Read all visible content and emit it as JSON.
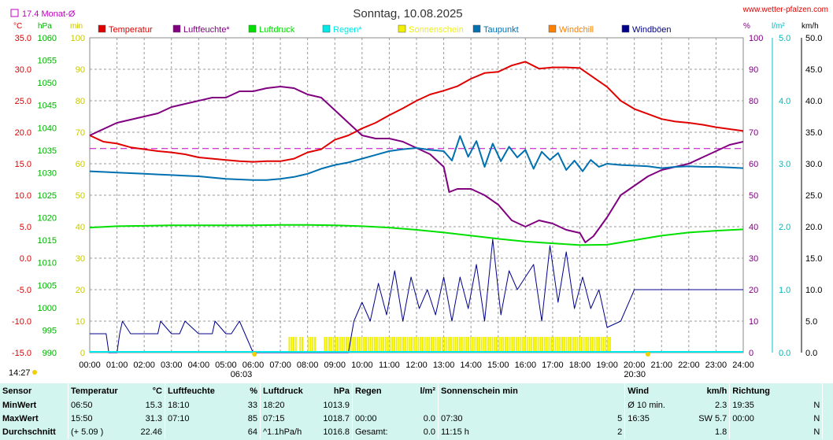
{
  "header": {
    "title": "Sonntag, 10.08.2025",
    "site": "www.wetter-pfalzen.com",
    "monthly_avg": "17.4 Monat-Ø"
  },
  "axis_units": {
    "temp": "°C",
    "hpa": "hPa",
    "min": "min",
    "pct": "%",
    "lm2": "l/m²",
    "kmh": "km/h"
  },
  "legend": [
    {
      "label": "Temperatur",
      "color": "#e00000"
    },
    {
      "label": "Luftfeuchte*",
      "color": "#800080"
    },
    {
      "label": "Luftdruck",
      "color": "#00e000"
    },
    {
      "label": "Regen*",
      "color": "#00e8e8"
    },
    {
      "label": "Sonnenschein",
      "color": "#f0f000"
    },
    {
      "label": "Taupunkt",
      "color": "#0070b0"
    },
    {
      "label": "Windchill",
      "color": "#ff8000"
    },
    {
      "label": "Windböen",
      "color": "#00008b"
    }
  ],
  "annotations": {
    "sunrise": "06:03",
    "sunset": "20:30",
    "now": "14:27"
  },
  "chart_data": {
    "type": "line",
    "x_ticks": [
      "00:00",
      "01:00",
      "02:00",
      "03:00",
      "04:00",
      "05:00",
      "06:00",
      "07:00",
      "08:00",
      "09:00",
      "10:00",
      "11:00",
      "12:00",
      "13:00",
      "14:00",
      "15:00",
      "16:00",
      "17:00",
      "18:00",
      "19:00",
      "20:00",
      "21:00",
      "22:00",
      "23:00",
      "24:00"
    ],
    "xlim": [
      0,
      24
    ],
    "temp_axis": {
      "ylim": [
        -15,
        35
      ],
      "ticks": [
        "35.0",
        "30.0",
        "25.0",
        "20.0",
        "15.0",
        "10.0",
        "5.0",
        "0.0",
        "-5.0",
        "-10.0",
        "-15.0"
      ]
    },
    "hpa_axis": {
      "ylim": [
        990,
        1060
      ],
      "ticks": [
        "1060",
        "1055",
        "1050",
        "1045",
        "1040",
        "1035",
        "1030",
        "1025",
        "1020",
        "1015",
        "1010",
        "1005",
        "1000",
        "995",
        "990"
      ]
    },
    "min_axis": {
      "ylim": [
        0,
        100
      ],
      "ticks": [
        "100",
        "90",
        "80",
        "70",
        "60",
        "50",
        "40",
        "30",
        "20",
        "10",
        "0"
      ]
    },
    "pct_axis": {
      "ylim": [
        0,
        100
      ],
      "ticks": [
        "100",
        "90",
        "80",
        "70",
        "60",
        "50",
        "40",
        "30",
        "20",
        "10",
        "0"
      ]
    },
    "lm2_axis": {
      "ylim": [
        0,
        5
      ],
      "ticks": [
        "5.0",
        "4.0",
        "3.0",
        "2.0",
        "1.0",
        "0.0"
      ]
    },
    "kmh_axis": {
      "ylim": [
        0,
        50
      ],
      "ticks": [
        "50.0",
        "45.0",
        "40.0",
        "35.0",
        "30.0",
        "25.0",
        "20.0",
        "15.0",
        "10.0",
        "5.0",
        "0.0"
      ]
    },
    "monthly_avg_temp": 17.4,
    "series": [
      {
        "name": "Temperatur",
        "axis": "temp",
        "color": "#e00000",
        "x": [
          0,
          0.5,
          1,
          1.5,
          2,
          2.5,
          3,
          3.5,
          4,
          4.5,
          5,
          5.5,
          6,
          6.5,
          7,
          7.5,
          8,
          8.5,
          9,
          9.5,
          10,
          10.5,
          11,
          11.5,
          12,
          12.5,
          13,
          13.5,
          14,
          14.5,
          15,
          15.5,
          16,
          16.5,
          17,
          17.5,
          18,
          18.5,
          19,
          19.5,
          20,
          20.5,
          21,
          21.5,
          22,
          22.5,
          23,
          23.5,
          24
        ],
        "values": [
          19.5,
          18.5,
          18.2,
          17.6,
          17.3,
          17.0,
          16.8,
          16.5,
          16.0,
          15.8,
          15.6,
          15.4,
          15.3,
          15.4,
          15.4,
          15.8,
          16.8,
          17.3,
          18.8,
          19.5,
          20.6,
          21.5,
          22.7,
          23.8,
          25.0,
          26.0,
          26.6,
          27.3,
          28.5,
          29.4,
          29.6,
          30.6,
          31.2,
          30.1,
          30.3,
          30.3,
          30.2,
          28.7,
          27.2,
          25.0,
          23.7,
          22.9,
          22.1,
          21.7,
          21.5,
          21.2,
          20.8,
          20.5,
          20.2
        ]
      },
      {
        "name": "Luftfeuchte*",
        "axis": "pct",
        "color": "#800080",
        "x": [
          0,
          0.5,
          1,
          1.5,
          2,
          2.5,
          3,
          3.5,
          4,
          4.5,
          5,
          5.5,
          6,
          6.5,
          7,
          7.5,
          8,
          8.5,
          9,
          9.5,
          10,
          10.5,
          11,
          11.5,
          12,
          12.5,
          13,
          13.2,
          13.5,
          14,
          14.5,
          15,
          15.5,
          16,
          16.5,
          17,
          17.5,
          18,
          18.2,
          18.5,
          19,
          19.5,
          20,
          20.5,
          21,
          21.5,
          22,
          22.5,
          23,
          23.5,
          24
        ],
        "values": [
          69,
          71,
          73,
          74,
          75,
          76,
          78,
          79,
          80,
          81,
          81,
          83,
          83,
          84,
          84.5,
          84,
          82,
          81,
          77,
          73,
          69,
          68,
          68,
          67,
          65,
          63,
          59,
          51,
          52,
          52,
          50,
          47,
          42,
          40,
          42,
          41,
          39,
          38,
          35,
          37,
          43,
          50,
          53,
          56,
          58,
          59,
          60,
          62,
          64,
          66,
          67
        ]
      },
      {
        "name": "Taupunkt",
        "axis": "temp",
        "color": "#0070b0",
        "x": [
          0,
          0.5,
          1,
          1.5,
          2,
          2.5,
          3,
          3.5,
          4,
          4.5,
          5,
          5.5,
          6,
          6.5,
          7,
          7.5,
          8,
          8.5,
          9,
          9.5,
          10,
          10.5,
          11,
          11.5,
          12,
          12.5,
          13,
          13.3,
          13.6,
          13.9,
          14.2,
          14.5,
          14.8,
          15.1,
          15.4,
          15.7,
          16,
          16.3,
          16.6,
          16.9,
          17.2,
          17.5,
          17.8,
          18.1,
          18.4,
          18.7,
          19,
          19.5,
          20,
          20.5,
          21,
          21.5,
          22,
          22.5,
          23,
          23.5,
          24
        ],
        "values": [
          13.8,
          13.7,
          13.6,
          13.5,
          13.4,
          13.3,
          13.2,
          13.1,
          13.0,
          12.8,
          12.6,
          12.5,
          12.4,
          12.4,
          12.6,
          12.9,
          13.4,
          14.2,
          14.8,
          15.2,
          15.8,
          16.4,
          17.0,
          17.3,
          17.5,
          17.2,
          17.0,
          15.5,
          19.4,
          16.1,
          18.6,
          14.5,
          18.2,
          15.4,
          17.7,
          16.0,
          17.2,
          14.2,
          16.9,
          15.6,
          16.7,
          14.0,
          15.5,
          13.8,
          15.6,
          14.5,
          15.0,
          14.8,
          14.7,
          14.6,
          14.3,
          14.5,
          14.6,
          14.5,
          14.5,
          14.4,
          14.3
        ]
      },
      {
        "name": "Luftdruck",
        "axis": "hpa",
        "color": "#00e000",
        "x": [
          0,
          1,
          2,
          3,
          4,
          5,
          6,
          7,
          8,
          9,
          10,
          11,
          12,
          13,
          14,
          15,
          16,
          17,
          18,
          19,
          20,
          21,
          22,
          23,
          24
        ],
        "values": [
          1017.8,
          1018.1,
          1018.2,
          1018.3,
          1018.3,
          1018.3,
          1018.3,
          1018.4,
          1018.4,
          1018.3,
          1018.1,
          1017.8,
          1017.3,
          1016.7,
          1016.0,
          1015.3,
          1014.7,
          1014.3,
          1013.9,
          1014.0,
          1015.0,
          1016.0,
          1016.7,
          1017.1,
          1017.4
        ]
      },
      {
        "name": "Windböen",
        "axis": "kmh",
        "color": "#00008b",
        "x": [
          0,
          0.6,
          0.7,
          1.0,
          1.1,
          1.2,
          1.5,
          2.0,
          2.5,
          2.6,
          3.0,
          3.3,
          3.5,
          4.0,
          4.5,
          4.6,
          5.0,
          5.2,
          5.5,
          5.7,
          6.0,
          6.2,
          6.4,
          7.0,
          8.0,
          9.0,
          9.5,
          9.7,
          10.0,
          10.3,
          10.6,
          10.9,
          11.2,
          11.5,
          11.8,
          12.1,
          12.4,
          12.7,
          13.0,
          13.3,
          13.6,
          13.9,
          14.2,
          14.5,
          14.8,
          15.1,
          15.4,
          15.7,
          16.0,
          16.3,
          16.6,
          16.9,
          17.2,
          17.5,
          17.8,
          18.1,
          18.4,
          18.7,
          19.0,
          19.5,
          20.0,
          20.5,
          21.0,
          21.5,
          22.0,
          22.5,
          23.0,
          23.5,
          24.0
        ],
        "values": [
          3,
          3,
          0,
          0,
          3,
          5,
          3,
          3,
          3,
          5,
          3,
          3,
          5,
          3,
          3,
          5,
          3,
          3,
          5,
          3,
          0,
          0,
          0,
          0,
          0,
          0,
          0,
          5,
          8,
          5,
          11,
          6,
          13,
          5,
          12,
          7,
          10,
          6,
          12,
          5,
          12,
          7,
          14,
          5,
          18,
          6,
          13,
          10,
          12,
          14,
          5,
          17,
          8,
          16,
          7,
          12,
          7,
          10,
          4,
          5,
          10,
          10,
          10,
          10,
          10,
          10,
          10,
          10,
          10
        ]
      }
    ],
    "sunshine": {
      "name": "Sonnenschein",
      "axis": "min",
      "color": "#f0f000",
      "intervals": [
        [
          7.3,
          7.6
        ],
        [
          7.7,
          7.8
        ],
        [
          8.0,
          8.3
        ],
        [
          8.6,
          19.1
        ]
      ],
      "value": 5
    }
  },
  "stats": {
    "headers": {
      "sensor": "Sensor",
      "temp": "Temperatur",
      "temp_unit": "°C",
      "hum": "Luftfeuchte",
      "hum_unit": "%",
      "press": "Luftdruck",
      "press_unit": "hPa",
      "rain": "Regen",
      "rain_unit": "l/m²",
      "sun": "Sonnenschein min",
      "wind": "Wind",
      "wind_unit": "km/h",
      "dir": "Richtung"
    },
    "rows": [
      {
        "label": "MinWert",
        "t_time": "06:50",
        "t_val": "15.3",
        "h_time": "18:10",
        "h_val": "33",
        "p_time": "18:20",
        "p_val": "1013.9",
        "r_time": "",
        "r_val": "",
        "s_time": "",
        "s_val": "",
        "w_time": "Ø 10 min.",
        "w_val": "2.3",
        "d_time": "19:35",
        "d_val": "N"
      },
      {
        "label": "MaxWert",
        "t_time": "15:50",
        "t_val": "31.3",
        "h_time": "07:10",
        "h_val": "85",
        "p_time": "07:15",
        "p_val": "1018.7",
        "r_time": "00:00",
        "r_val": "0.0",
        "s_time": "07:30",
        "s_val": "5",
        "w_time": "16:35",
        "w_val": "SW 5.7",
        "d_time": "00:00",
        "d_val": "N"
      },
      {
        "label": "Durchschnitt",
        "t_time": "(+ 5.09 )",
        "t_val": "22.46",
        "h_time": "",
        "h_val": "64",
        "p_time": "^1.1hPa/h",
        "p_val": "1016.8",
        "r_time": "Gesamt:",
        "r_val": "0.0",
        "s_time": "11:15 h",
        "s_val": "2",
        "w_time": "",
        "w_val": "1.8",
        "d_time": "",
        "d_val": "N"
      }
    ]
  }
}
